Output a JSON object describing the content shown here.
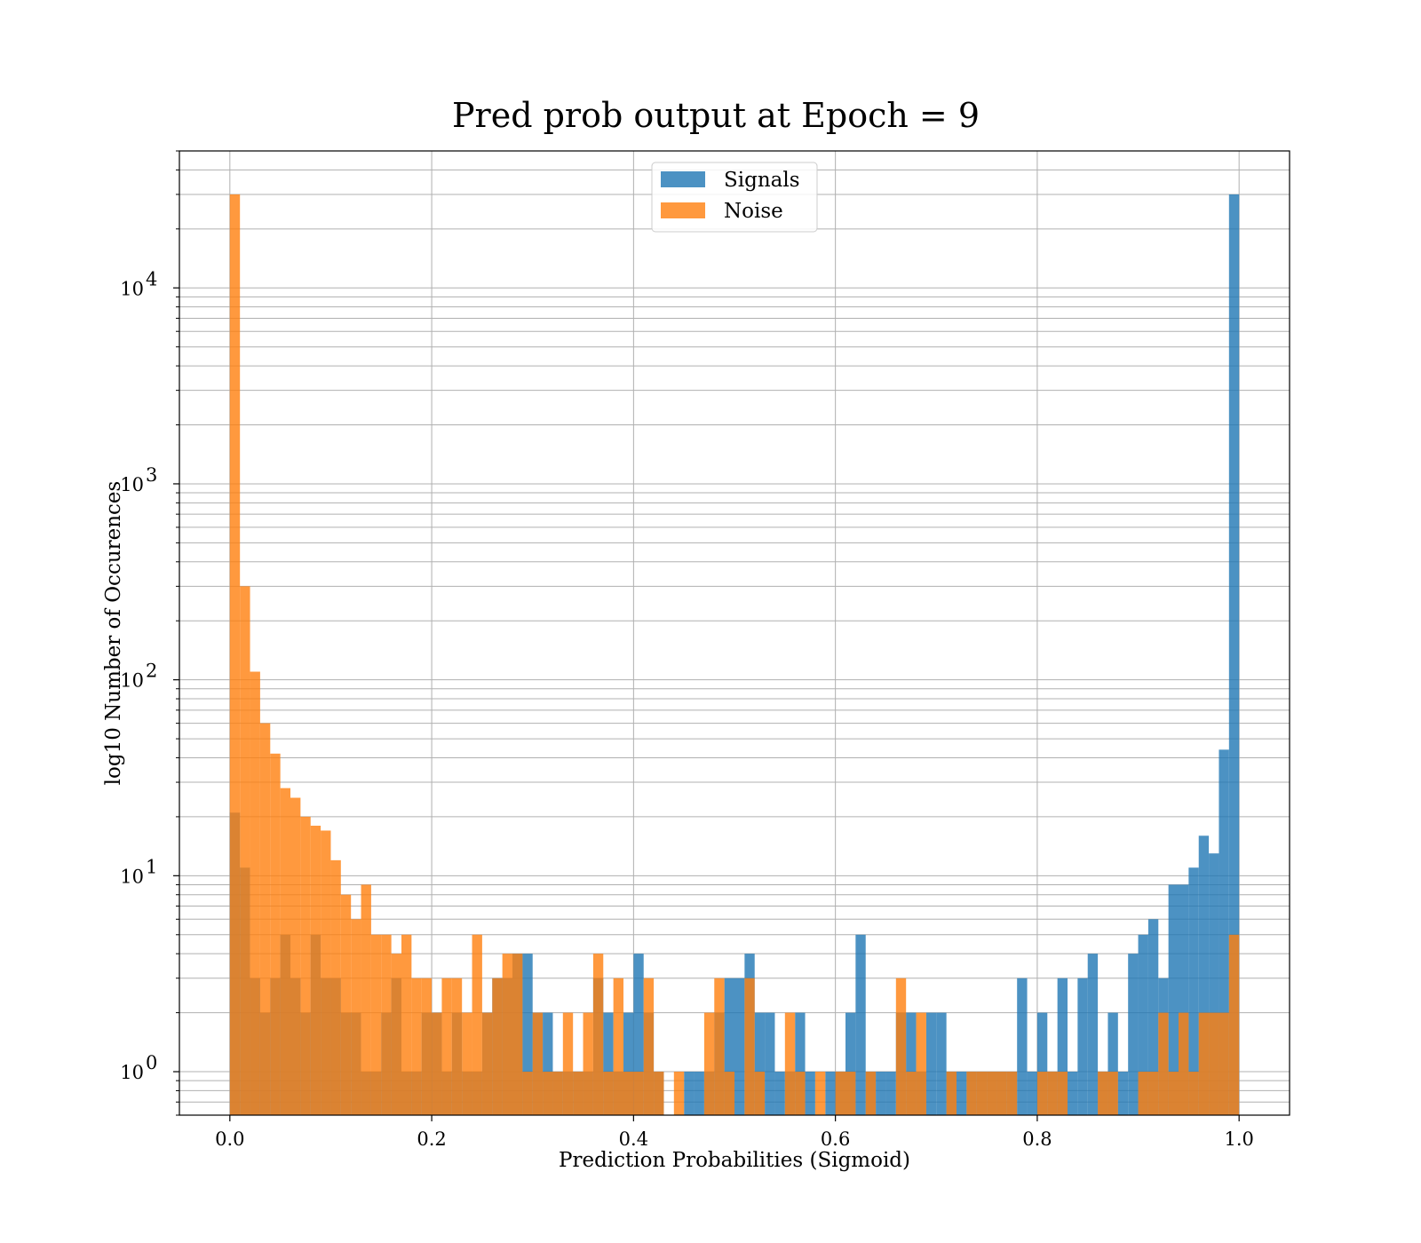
{
  "chart_data": {
    "type": "bar",
    "title": "Pred prob output at Epoch = 9",
    "xlabel": "Prediction Probabilities (Sigmoid)",
    "ylabel": "log10 Number of Occurences",
    "xlim": [
      -0.05,
      1.05
    ],
    "ylim": [
      0.6,
      50000
    ],
    "yscale": "log",
    "grid": true,
    "legend_position": "top-center",
    "x_ticks": [
      0.0,
      0.2,
      0.4,
      0.6,
      0.8,
      1.0
    ],
    "x_tick_labels": [
      "0.0",
      "0.2",
      "0.4",
      "0.6",
      "0.8",
      "1.0"
    ],
    "y_ticks": [
      1,
      10,
      100,
      1000,
      10000
    ],
    "y_tick_labels": [
      {
        "base": "10",
        "exp": "0"
      },
      {
        "base": "10",
        "exp": "1"
      },
      {
        "base": "10",
        "exp": "2"
      },
      {
        "base": "10",
        "exp": "3"
      },
      {
        "base": "10",
        "exp": "4"
      }
    ],
    "bin_start": 0.0,
    "bin_width": 0.01,
    "series": [
      {
        "name": "Signals",
        "color": "#1f77b4",
        "alpha": 0.8,
        "counts": [
          21,
          11,
          3,
          2,
          3,
          5,
          3,
          2,
          5,
          3,
          3,
          2,
          2,
          1,
          1,
          2,
          3,
          1,
          1,
          2,
          2,
          1,
          2,
          1,
          1,
          2,
          3,
          3,
          4,
          4,
          2,
          2,
          1,
          1,
          1,
          1,
          3,
          2,
          1,
          2,
          4,
          2,
          1,
          0,
          0,
          1,
          1,
          1,
          2,
          3,
          3,
          4,
          2,
          2,
          1,
          1,
          2,
          1,
          0,
          1,
          1,
          2,
          5,
          1,
          1,
          1,
          2,
          2,
          1,
          2,
          2,
          1,
          1,
          1,
          1,
          1,
          1,
          1,
          3,
          1,
          2,
          1,
          3,
          1,
          3,
          4,
          1,
          2,
          1,
          4,
          5,
          6,
          3,
          9,
          9,
          11,
          16,
          13,
          44,
          30000
        ]
      },
      {
        "name": "Noise",
        "color": "#ff7f0e",
        "alpha": 0.8,
        "counts": [
          30000,
          300,
          110,
          60,
          42,
          28,
          25,
          20,
          18,
          17,
          12,
          8,
          6,
          9,
          5,
          5,
          4,
          5,
          3,
          3,
          2,
          3,
          3,
          2,
          5,
          2,
          3,
          4,
          4,
          1,
          2,
          1,
          1,
          2,
          1,
          2,
          4,
          1,
          3,
          1,
          1,
          3,
          1,
          0,
          1,
          0,
          0,
          2,
          3,
          1,
          0,
          3,
          1,
          0,
          0,
          2,
          1,
          0,
          1,
          0,
          1,
          1,
          0,
          1,
          0,
          0,
          3,
          1,
          2,
          0,
          0,
          1,
          0,
          1,
          1,
          1,
          1,
          1,
          0,
          0,
          1,
          1,
          1,
          0,
          0,
          0,
          1,
          1,
          0,
          0,
          1,
          1,
          2,
          1,
          2,
          1,
          2,
          2,
          2,
          5
        ]
      }
    ]
  }
}
